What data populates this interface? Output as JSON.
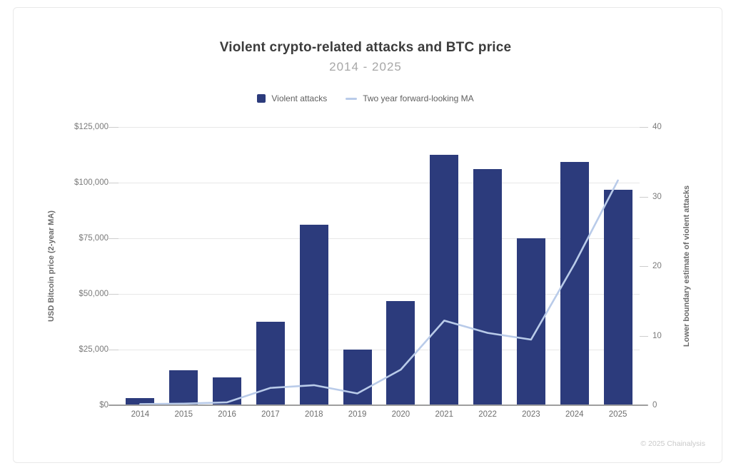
{
  "header": {
    "title": "Violent crypto-related attacks and BTC price",
    "subtitle": "2014 - 2025"
  },
  "legend": {
    "items": [
      {
        "label": "Violent attacks",
        "swatch": "bar"
      },
      {
        "label": "Two year forward-looking MA",
        "swatch": "line"
      }
    ]
  },
  "footer": {
    "attribution": "© 2025 Chainalysis"
  },
  "colors": {
    "bar": "#2c3b7c",
    "line": "#b9cbe9",
    "grid": "#e7e7e7",
    "baseline": "#9e9e9e",
    "title": "#3c3c3c",
    "subtitle": "#a7a7a7"
  },
  "chart_data": {
    "type": "bar+line",
    "title": "Violent crypto-related attacks and BTC price",
    "subtitle": "2014 - 2025",
    "categories": [
      "2014",
      "2015",
      "2016",
      "2017",
      "2018",
      "2019",
      "2020",
      "2021",
      "2022",
      "2023",
      "2024",
      "2025"
    ],
    "series": [
      {
        "name": "Violent attacks",
        "type": "bar",
        "axis": "right",
        "values": [
          1,
          5,
          4,
          12,
          26,
          8,
          15,
          36,
          34,
          24,
          35,
          31
        ]
      },
      {
        "name": "Two year forward-looking MA",
        "type": "line",
        "axis": "left",
        "values": [
          500,
          700,
          1300,
          7800,
          9000,
          5300,
          16000,
          38000,
          32500,
          29500,
          63500,
          101000
        ]
      }
    ],
    "left_axis": {
      "label": "USD Bitcoin price (2-year MA)",
      "min": 0,
      "max": 125000,
      "tick_values": [
        0,
        25000,
        50000,
        75000,
        100000,
        125000
      ],
      "tick_labels": [
        "$0",
        "$25,000",
        "$50,000",
        "$75,000",
        "$100,000",
        "$125,000"
      ]
    },
    "right_axis": {
      "label": "Lower boundary estimate of violent attacks",
      "min": 0,
      "max": 40,
      "tick_values": [
        0,
        10,
        20,
        30,
        40
      ],
      "tick_labels": [
        "0",
        "10",
        "20",
        "30",
        "40"
      ]
    },
    "grid": true,
    "legend_position": "top"
  }
}
